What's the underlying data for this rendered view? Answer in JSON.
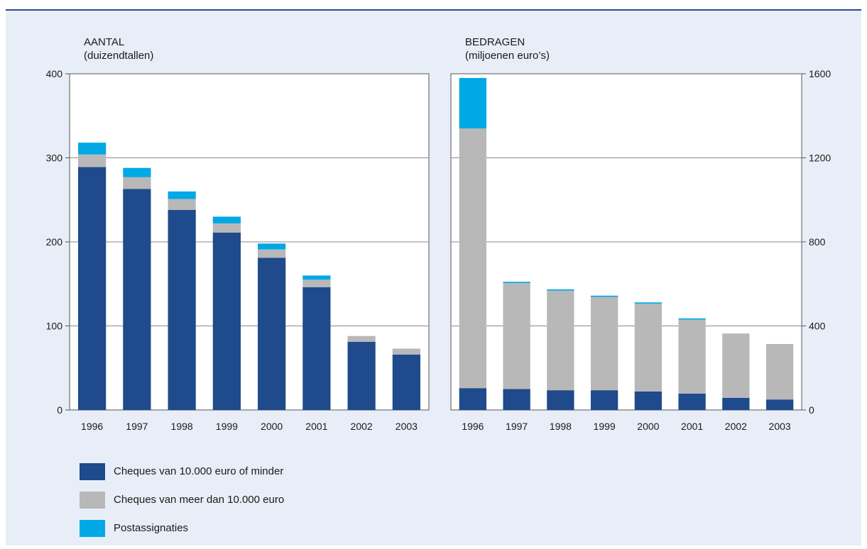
{
  "chart_data": [
    {
      "type": "bar",
      "stacked": true,
      "title": "AANTAL",
      "subtitle": "(duizendtallen)",
      "categories": [
        "1996",
        "1997",
        "1998",
        "1999",
        "2000",
        "2001",
        "2002",
        "2003"
      ],
      "series": [
        {
          "name": "Cheques van 10.000 euro of minder",
          "values": [
            289,
            263,
            238,
            211,
            181,
            146,
            81,
            66
          ]
        },
        {
          "name": "Cheques van meer dan 10.000 euro",
          "values": [
            15,
            14,
            13,
            11,
            10,
            9,
            7,
            7
          ]
        },
        {
          "name": "Postassignaties",
          "values": [
            14,
            11,
            9,
            8,
            7,
            5,
            0,
            0
          ]
        }
      ],
      "ylim": [
        0,
        400
      ],
      "yticks": [
        "0",
        "100",
        "200",
        "300",
        "400"
      ],
      "y_axis_side": "left",
      "grid": true
    },
    {
      "type": "bar",
      "stacked": true,
      "title": "BEDRAGEN",
      "subtitle": "(miljoenen euro’s)",
      "categories": [
        "1996",
        "1997",
        "1998",
        "1999",
        "2000",
        "2001",
        "2002",
        "2003"
      ],
      "series": [
        {
          "name": "Cheques van 10.000 euro of minder",
          "values": [
            104,
            100,
            94,
            94,
            88,
            78,
            58,
            50
          ]
        },
        {
          "name": "Cheques van meer dan 10.000 euro",
          "values": [
            1236,
            504,
            474,
            444,
            418,
            352,
            306,
            264
          ]
        },
        {
          "name": "Postassignaties",
          "values": [
            240,
            6,
            6,
            6,
            6,
            6,
            0,
            0
          ]
        }
      ],
      "ylim": [
        0,
        1600
      ],
      "yticks": [
        "0",
        "400",
        "800",
        "1200",
        "1600"
      ],
      "y_axis_side": "right",
      "grid": true
    }
  ],
  "legend": {
    "placement": "bottom-left",
    "items": [
      {
        "label": "Cheques van 10.000 euro of minder",
        "color": "#1f4a8c"
      },
      {
        "label": "Cheques van meer dan 10.000 euro",
        "color": "#b8b8b8"
      },
      {
        "label": "Postassignaties",
        "color": "#00a8e6"
      }
    ]
  }
}
